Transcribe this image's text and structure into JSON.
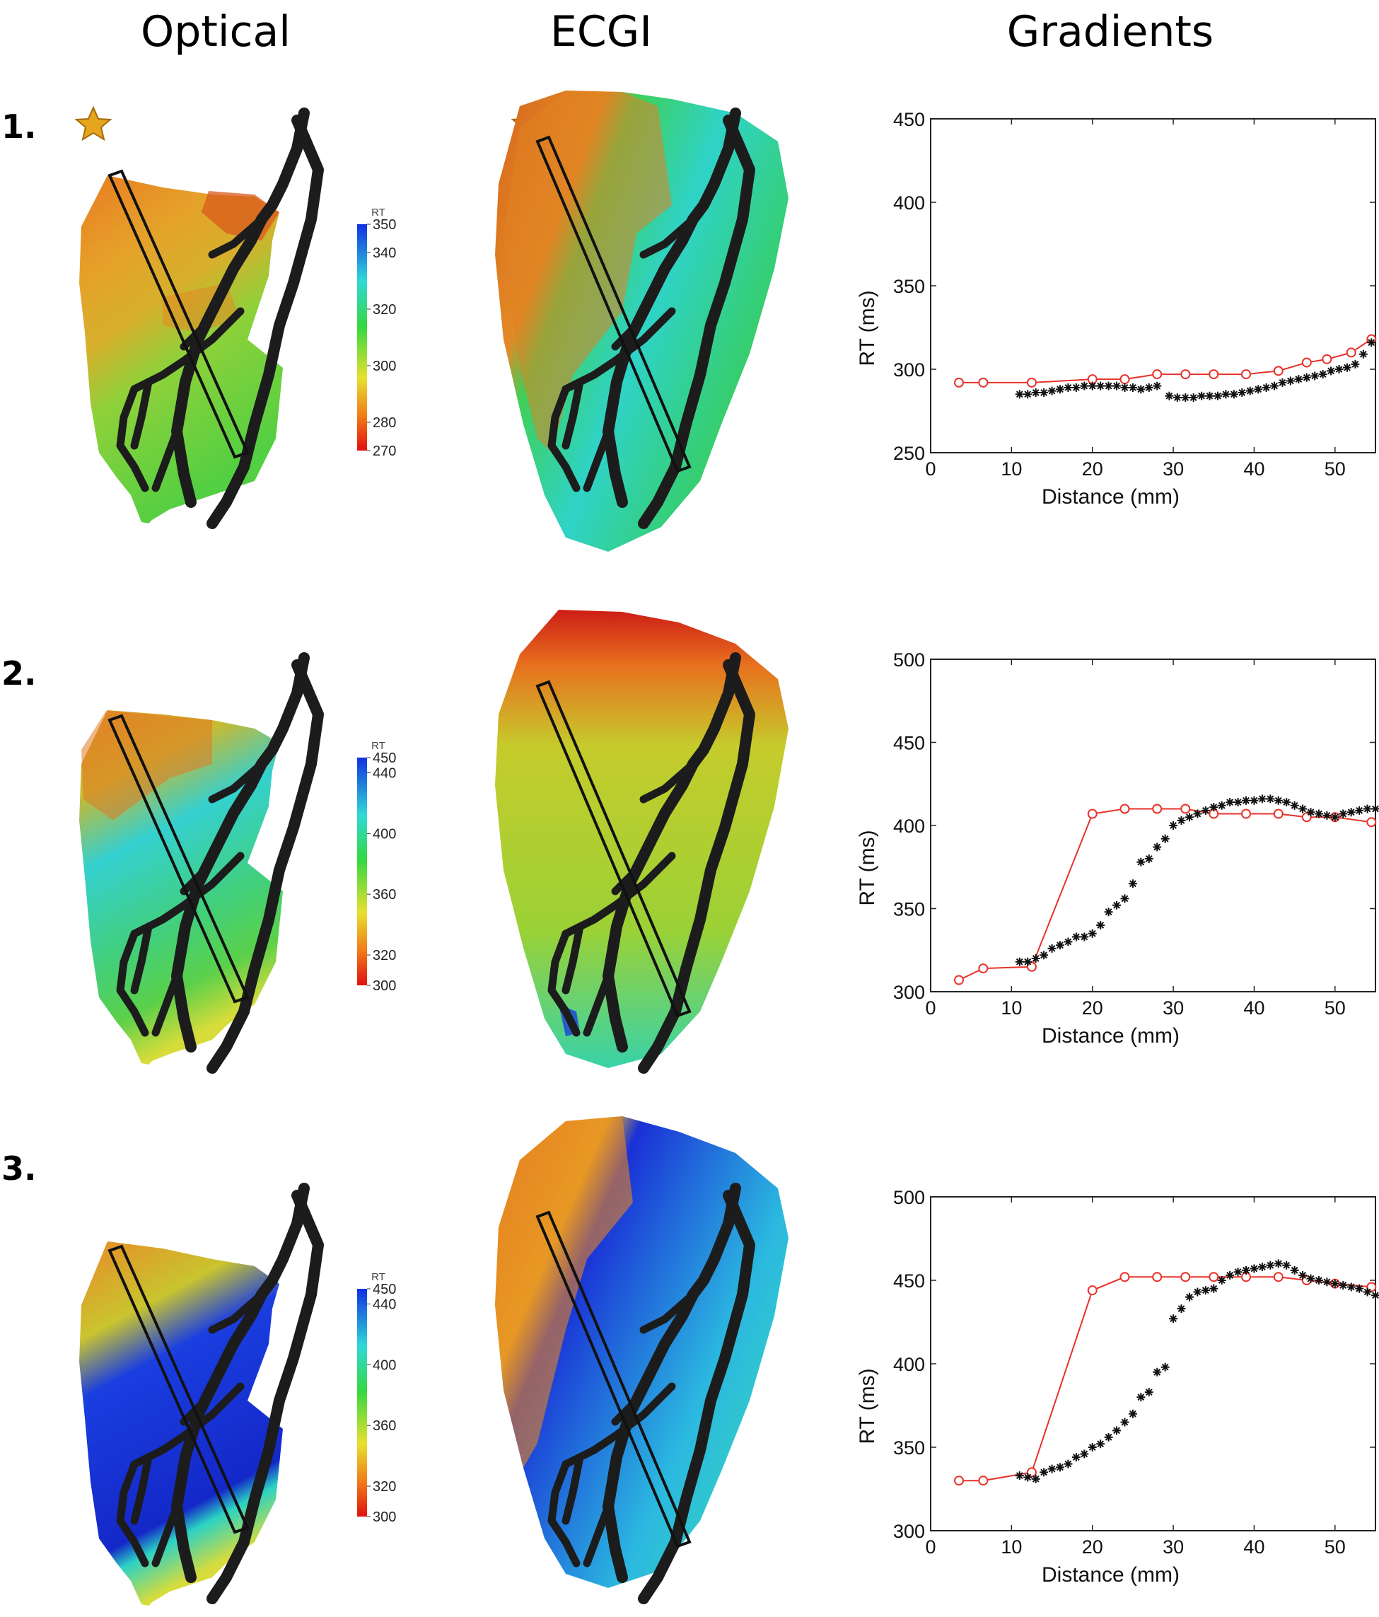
{
  "column_headers": [
    "Optical",
    "ECGI",
    "Gradients"
  ],
  "rows": [
    {
      "label": "1.",
      "has_star": true,
      "colorbar": {
        "title": "RT",
        "min": 270,
        "max": 350,
        "ticks": [
          270,
          280,
          300,
          320,
          340,
          350
        ]
      },
      "optical_map_colors": [
        "#e87a20",
        "#e6a02a",
        "#c9c12d",
        "#8fd13a",
        "#58cf40",
        "#d95a1c"
      ],
      "ecgi_map_colors": [
        "#d8661c",
        "#e28a26",
        "#3fcf5a",
        "#2fd3c8",
        "#39cc4a"
      ]
    },
    {
      "label": "2.",
      "has_star": false,
      "colorbar": {
        "title": "RT",
        "min": 300,
        "max": 450,
        "ticks": [
          300,
          320,
          360,
          400,
          440,
          450
        ]
      },
      "optical_map_colors": [
        "#e58a28",
        "#cbb92f",
        "#34d0cf",
        "#43cf77",
        "#5bd04a",
        "#d8dc3a"
      ],
      "ecgi_map_colors": [
        "#cc1d16",
        "#e8701e",
        "#c5cc2c",
        "#9bd136",
        "#38d2a8"
      ]
    },
    {
      "label": "3.",
      "has_star": false,
      "colorbar": {
        "title": "RT",
        "min": 300,
        "max": 450,
        "ticks": [
          300,
          320,
          360,
          400,
          440,
          450
        ]
      },
      "optical_map_colors": [
        "#e98a26",
        "#c9c42f",
        "#1a3ee0",
        "#1428c8",
        "#2bd2c4",
        "#d8dc3a"
      ],
      "ecgi_map_colors": [
        "#e3761f",
        "#e6b42c",
        "#1a30d6",
        "#2bb8e0",
        "#34d3c0"
      ]
    }
  ],
  "chart_data": [
    {
      "type": "line",
      "title": "",
      "xlabel": "Distance (mm)",
      "ylabel": "RT (ms)",
      "xlim": [
        0,
        55
      ],
      "ylim": [
        250,
        450
      ],
      "xticks": [
        0,
        10,
        20,
        30,
        40,
        50
      ],
      "yticks": [
        250,
        300,
        350,
        400,
        450
      ],
      "series": [
        {
          "name": "ECGI",
          "color": "#e8322a",
          "marker": "circle",
          "x": [
            3.5,
            6.5,
            12.5,
            20,
            24,
            28,
            31.5,
            35,
            39,
            43,
            46.5,
            49,
            52,
            54.5
          ],
          "y": [
            292,
            292,
            292,
            294,
            294,
            297,
            297,
            297,
            297,
            299,
            304,
            306,
            310,
            318
          ]
        },
        {
          "name": "Optical",
          "color": "#111111",
          "marker": "star",
          "x": [
            11,
            12,
            13,
            14,
            15,
            16,
            17,
            18,
            19,
            20,
            21,
            22,
            23,
            24,
            25,
            26,
            27,
            28,
            29.5,
            30.5,
            31.5,
            32.5,
            33.5,
            34.5,
            35.5,
            36.5,
            37.5,
            38.5,
            39.5,
            40.5,
            41.5,
            42.5,
            43.5,
            44.5,
            45.5,
            46.5,
            47.5,
            48.5,
            49.5,
            50.5,
            51.5,
            52.5,
            53.5,
            54.5
          ],
          "y": [
            285,
            285,
            286,
            286,
            287,
            288,
            289,
            289,
            290,
            290,
            290,
            290,
            290,
            289,
            289,
            288,
            289,
            290,
            284,
            283,
            283,
            283,
            284,
            284,
            284,
            285,
            285,
            286,
            287,
            288,
            289,
            290,
            292,
            293,
            294,
            295,
            296,
            297,
            299,
            300,
            301,
            303,
            309,
            316
          ]
        }
      ]
    },
    {
      "type": "line",
      "title": "",
      "xlabel": "Distance (mm)",
      "ylabel": "RT (ms)",
      "xlim": [
        0,
        55
      ],
      "ylim": [
        300,
        500
      ],
      "xticks": [
        0,
        10,
        20,
        30,
        40,
        50
      ],
      "yticks": [
        300,
        350,
        400,
        450,
        500
      ],
      "series": [
        {
          "name": "ECGI",
          "color": "#e8322a",
          "marker": "circle",
          "x": [
            3.5,
            6.5,
            12.5,
            20,
            24,
            28,
            31.5,
            35,
            39,
            43,
            46.5,
            50,
            54.5
          ],
          "y": [
            307,
            314,
            315,
            407,
            410,
            410,
            410,
            407,
            407,
            407,
            405,
            405,
            402
          ]
        },
        {
          "name": "Optical",
          "color": "#111111",
          "marker": "star",
          "x": [
            11,
            12,
            13,
            14,
            15,
            16,
            17,
            18,
            19,
            20,
            21,
            22,
            23,
            24,
            25,
            26,
            27,
            28,
            29,
            30,
            31,
            32,
            33,
            34,
            35,
            36,
            37,
            38,
            39,
            40,
            41,
            42,
            43,
            44,
            45,
            46,
            47,
            48,
            49,
            50,
            51,
            52,
            53,
            54,
            55
          ],
          "y": [
            318,
            318,
            320,
            322,
            326,
            328,
            330,
            333,
            333,
            335,
            340,
            348,
            352,
            356,
            365,
            378,
            380,
            387,
            392,
            400,
            403,
            405,
            407,
            409,
            411,
            412,
            414,
            414,
            415,
            415,
            416,
            416,
            415,
            414,
            412,
            410,
            408,
            407,
            406,
            405,
            407,
            408,
            409,
            410,
            410
          ]
        }
      ]
    },
    {
      "type": "line",
      "title": "",
      "xlabel": "Distance (mm)",
      "ylabel": "RT (ms)",
      "xlim": [
        0,
        55
      ],
      "ylim": [
        300,
        500
      ],
      "xticks": [
        0,
        10,
        20,
        30,
        40,
        50
      ],
      "yticks": [
        300,
        350,
        400,
        450,
        500
      ],
      "series": [
        {
          "name": "ECGI",
          "color": "#e8322a",
          "marker": "circle",
          "x": [
            3.5,
            6.5,
            12.5,
            20,
            24,
            28,
            31.5,
            35,
            39,
            43,
            46.5,
            50,
            54.5
          ],
          "y": [
            330,
            330,
            335,
            444,
            452,
            452,
            452,
            452,
            452,
            452,
            450,
            448,
            446
          ]
        },
        {
          "name": "Optical",
          "color": "#111111",
          "marker": "star",
          "x": [
            11,
            12,
            13,
            14,
            15,
            16,
            17,
            18,
            19,
            20,
            21,
            22,
            23,
            24,
            25,
            26,
            27,
            28,
            29,
            30,
            31,
            32,
            33,
            34,
            35,
            36,
            37,
            38,
            39,
            40,
            41,
            42,
            43,
            44,
            45,
            46,
            47,
            48,
            49,
            50,
            51,
            52,
            53,
            54,
            55
          ],
          "y": [
            333,
            332,
            331,
            335,
            337,
            338,
            340,
            344,
            346,
            350,
            352,
            356,
            360,
            365,
            370,
            380,
            383,
            395,
            398,
            427,
            433,
            440,
            443,
            444,
            445,
            450,
            453,
            455,
            456,
            457,
            458,
            459,
            460,
            459,
            456,
            453,
            451,
            450,
            449,
            448,
            447,
            446,
            445,
            443,
            441
          ]
        }
      ]
    }
  ]
}
